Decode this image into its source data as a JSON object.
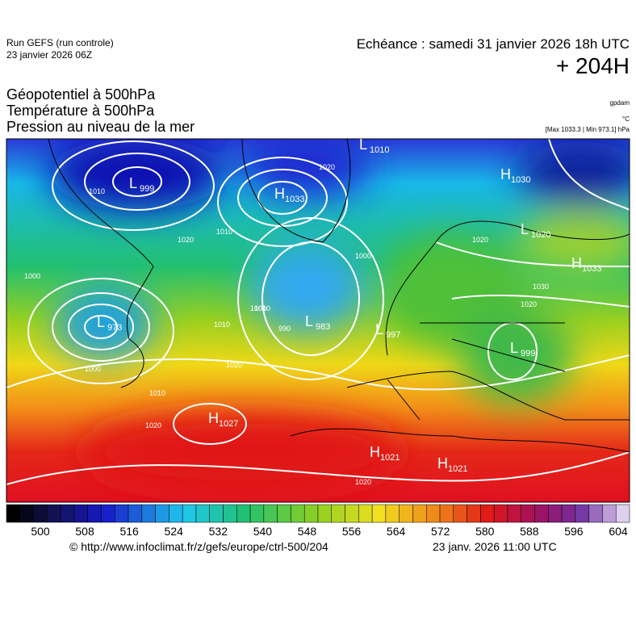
{
  "header": {
    "run": "Run GEFS (run controle)",
    "run_date": "23 janvier 2026 06Z",
    "valid": "Echéance : samedi 31 janvier 2026 18h UTC",
    "lead": "+ 204H",
    "fields": [
      "Géopotentiel à 500hPa",
      "Température à 500hPa",
      "Pression au niveau de la mer"
    ],
    "unit_geo": "gpdam",
    "unit_temp": "°C",
    "pressure_range": "[Max 1033.3 | Min 973.1] hPa"
  },
  "centers": [
    {
      "letter": "L",
      "value": 999
    },
    {
      "letter": "H",
      "value": 1033
    },
    {
      "letter": "L",
      "value": 1010
    },
    {
      "letter": "H",
      "value": 1030
    },
    {
      "letter": "L",
      "value": 1020
    },
    {
      "letter": "H",
      "value": 1033
    },
    {
      "letter": "L",
      "value": 973
    },
    {
      "letter": "L",
      "value": 983
    },
    {
      "letter": "L",
      "value": 997
    },
    {
      "letter": "L",
      "value": 999
    },
    {
      "letter": "H",
      "value": 1027
    },
    {
      "letter": "H",
      "value": 1021
    },
    {
      "letter": "H",
      "value": 1021
    }
  ],
  "isobar_labels": [
    "1010",
    "1020",
    "1010",
    "1020",
    "1000",
    "1010",
    "1020",
    "1010",
    "1000",
    "1010",
    "1020",
    "1020",
    "1000",
    "990",
    "1000",
    "1030",
    "1020",
    "1020"
  ],
  "colorbar": {
    "ticks": [
      500,
      508,
      516,
      524,
      532,
      540,
      548,
      556,
      564,
      572,
      580,
      588,
      596,
      604
    ]
  },
  "footer": {
    "url": "© http://www.infoclimat.fr/z/gefs/europe/ctrl-500/204",
    "issued": "23 janv. 2026 11:00 UTC"
  }
}
